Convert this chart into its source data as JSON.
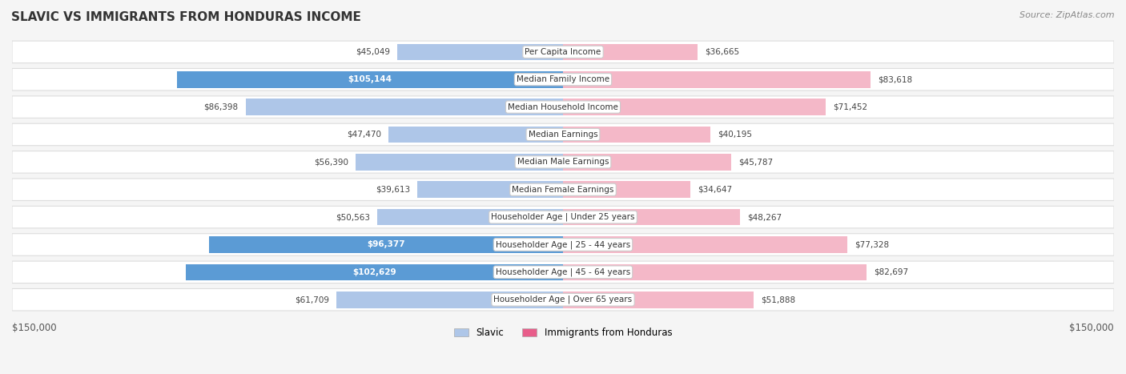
{
  "title": "SLAVIC VS IMMIGRANTS FROM HONDURAS INCOME",
  "source": "Source: ZipAtlas.com",
  "categories": [
    "Per Capita Income",
    "Median Family Income",
    "Median Household Income",
    "Median Earnings",
    "Median Male Earnings",
    "Median Female Earnings",
    "Householder Age | Under 25 years",
    "Householder Age | 25 - 44 years",
    "Householder Age | 45 - 64 years",
    "Householder Age | Over 65 years"
  ],
  "slavic_values": [
    45049,
    105144,
    86398,
    47470,
    56390,
    39613,
    50563,
    96377,
    102629,
    61709
  ],
  "honduras_values": [
    36665,
    83618,
    71452,
    40195,
    45787,
    34647,
    48267,
    77328,
    82697,
    51888
  ],
  "slavic_labels": [
    "$45,049",
    "$105,144",
    "$86,398",
    "$47,470",
    "$56,390",
    "$39,613",
    "$50,563",
    "$96,377",
    "$102,629",
    "$61,709"
  ],
  "honduras_labels": [
    "$36,665",
    "$83,618",
    "$71,452",
    "$40,195",
    "$45,787",
    "$34,647",
    "$48,267",
    "$77,328",
    "$82,697",
    "$51,888"
  ],
  "max_value": 150000,
  "slavic_color_light": "#aec6e8",
  "slavic_color_dark": "#5b9bd5",
  "honduras_color_light": "#f4b8c8",
  "honduras_color_dark": "#e85d8a",
  "slavic_threshold": 90000,
  "honduras_threshold": 90000,
  "legend_slavic": "Slavic",
  "legend_honduras": "Immigrants from Honduras",
  "xlabel_left": "$150,000",
  "xlabel_right": "$150,000",
  "background_color": "#f5f5f5",
  "row_background": "#ffffff",
  "row_border": "#dddddd"
}
